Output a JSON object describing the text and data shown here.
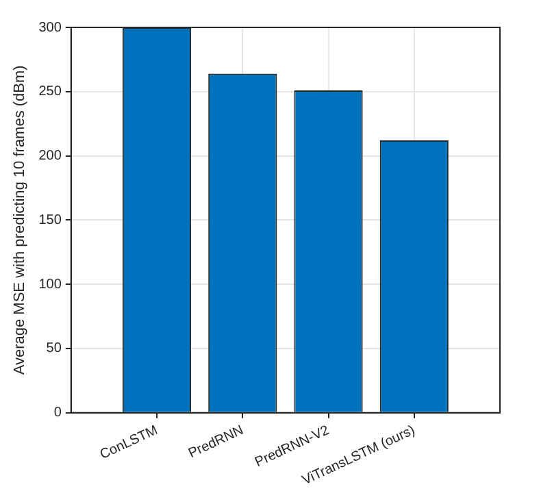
{
  "chart_data": {
    "type": "bar",
    "ylabel": "Average MSE with predicting 10 frames (dBm)",
    "categories": [
      "ConLSTM",
      "PredRNN",
      "PredRNN-V2",
      "ViTransLSTM (ours)"
    ],
    "values": [
      300,
      264,
      251,
      212
    ],
    "color": "#0072bd",
    "ylim": [
      0,
      300
    ],
    "yticks": [
      0,
      50,
      100,
      150,
      200,
      250,
      300
    ],
    "grid": true
  }
}
